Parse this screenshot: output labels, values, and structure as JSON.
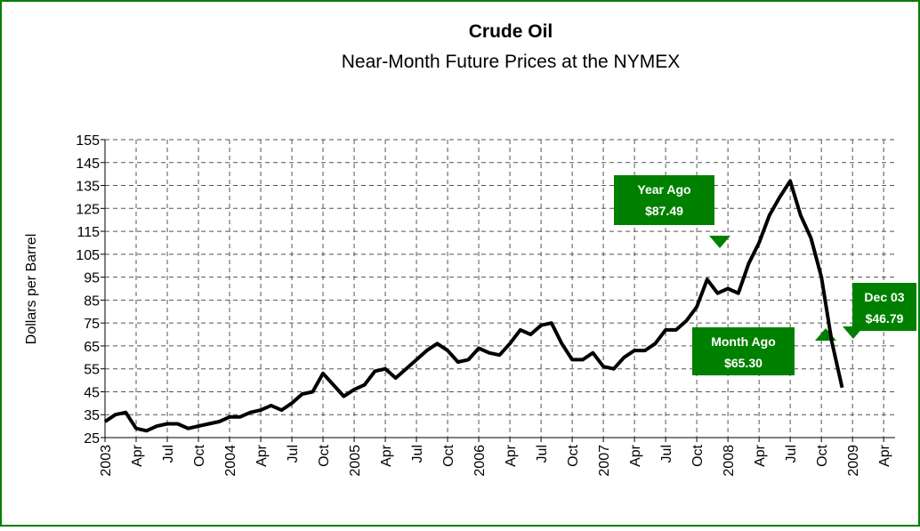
{
  "chart_data": {
    "type": "line",
    "title": "Crude Oil",
    "subtitle": "Near-Month Future Prices at the NYMEX",
    "y_label": "Dollars per Barrel",
    "categories": [
      "2003",
      null,
      null,
      "Apr",
      null,
      null,
      "Jul",
      null,
      null,
      "Oct",
      null,
      null,
      "2004",
      null,
      null,
      "Apr",
      null,
      null,
      "Jul",
      null,
      null,
      "Oct",
      null,
      null,
      "2005",
      null,
      null,
      "Apr",
      null,
      null,
      "Jul",
      null,
      null,
      "Oct",
      null,
      null,
      "2006",
      null,
      null,
      "Apr",
      null,
      null,
      "Jul",
      null,
      null,
      "Oct",
      null,
      null,
      "2007",
      null,
      null,
      "Apr",
      null,
      null,
      "Jul",
      null,
      null,
      "Oct",
      null,
      null,
      "2008",
      null,
      null,
      "Apr",
      null,
      null,
      "Jul",
      null,
      null,
      "Oct",
      null,
      null,
      "2009",
      null,
      null,
      "Apr"
    ],
    "series": [
      {
        "name": "Crude Oil",
        "color": "#000000",
        "values": [
          32,
          35,
          36,
          29,
          28,
          30,
          31,
          31,
          29,
          30,
          31,
          32,
          34,
          34,
          36,
          37,
          39,
          37,
          40,
          44,
          45,
          53,
          48,
          43,
          46,
          48,
          54,
          55,
          51,
          55,
          59,
          63,
          66,
          63,
          58,
          59,
          64,
          62,
          61,
          66,
          72,
          70,
          74,
          75,
          66,
          59,
          59,
          62,
          56,
          55,
          60,
          63,
          63,
          66,
          72,
          72,
          76,
          82,
          94,
          88,
          90,
          88,
          101,
          110,
          122,
          130,
          137,
          122,
          112,
          95,
          67,
          46.79,
          null,
          null,
          null,
          null
        ]
      }
    ],
    "ylim": [
      25,
      155
    ],
    "yticks": [
      25,
      35,
      45,
      55,
      65,
      75,
      85,
      95,
      105,
      115,
      125,
      135,
      145,
      155
    ],
    "grid": true,
    "annotations": [
      {
        "label": "Year Ago",
        "value_text": "$87.49"
      },
      {
        "label": "Month Ago",
        "value_text": "$65.30"
      },
      {
        "label": "Dec 03",
        "value_text": "$46.79"
      }
    ]
  }
}
